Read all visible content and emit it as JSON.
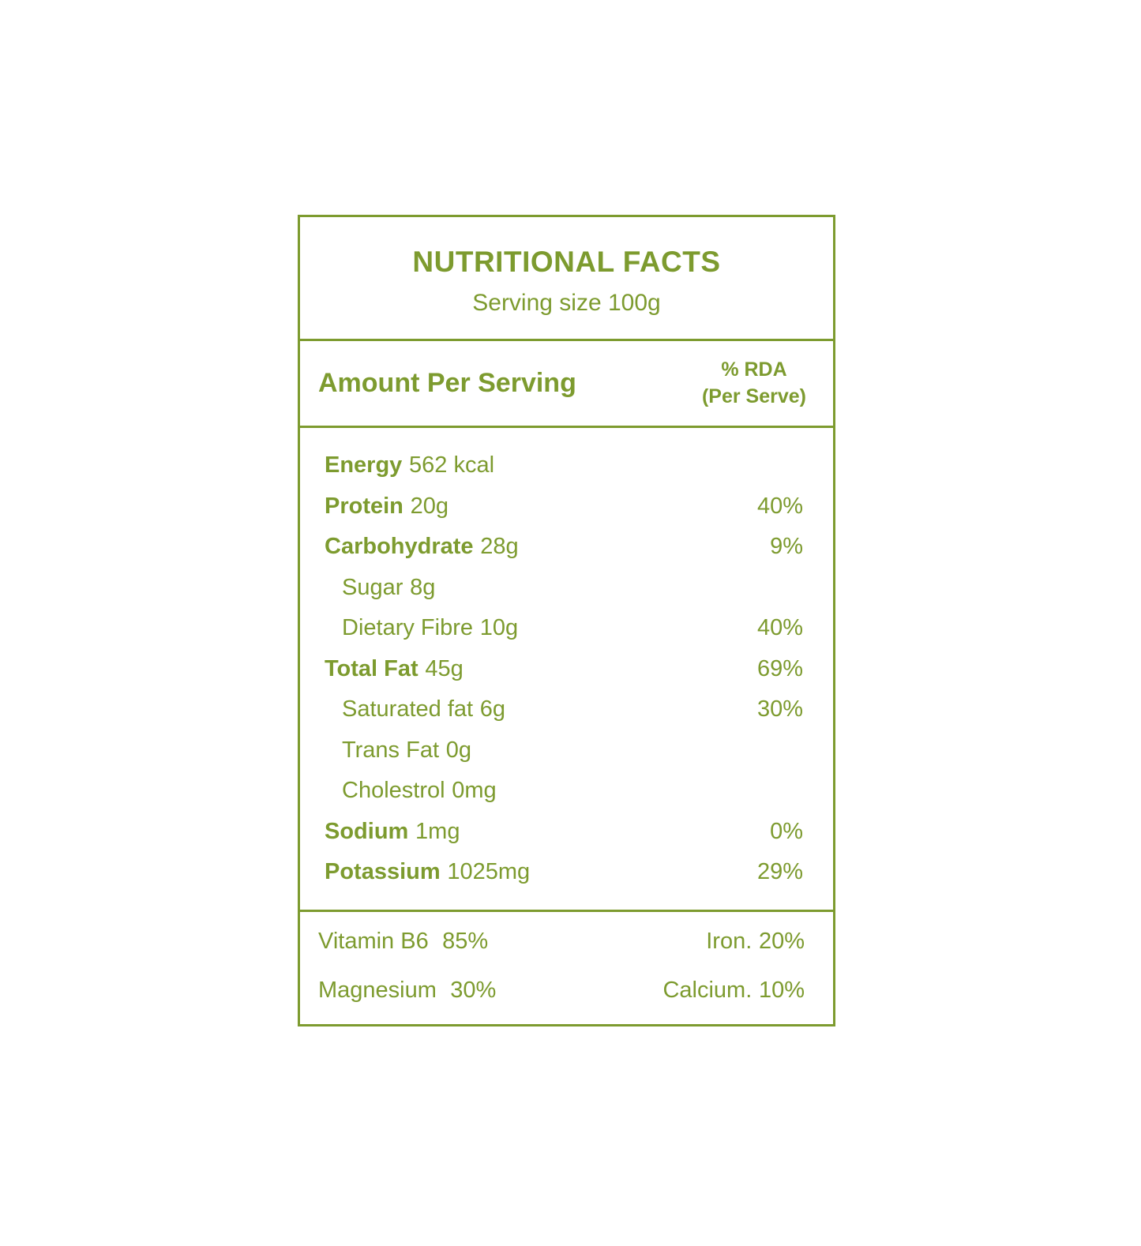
{
  "accent_color": "#7d9b2f",
  "label": {
    "title": "NUTRITIONAL FACTS",
    "serving_size": "Serving size 100g",
    "columns": {
      "amount_heading": "Amount Per Serving",
      "rda_heading_line1": "% RDA",
      "rda_heading_line2": "(Per Serve)"
    },
    "nutrients": [
      {
        "name": "Energy",
        "amount": "562 kcal",
        "rda": ""
      },
      {
        "name": "Protein",
        "amount": "20g",
        "rda": "40%"
      },
      {
        "name": "Carbohydrate",
        "amount": "28g",
        "rda": "9%"
      },
      {
        "name": "Sugar",
        "amount": "8g",
        "rda": ""
      },
      {
        "name": "Dietary Fibre",
        "amount": "10g",
        "rda": "40%"
      },
      {
        "name": "Total Fat",
        "amount": "45g",
        "rda": "69%"
      },
      {
        "name": "Saturated fat",
        "amount": "6g",
        "rda": "30%"
      },
      {
        "name": "Trans Fat",
        "amount": "0g",
        "rda": ""
      },
      {
        "name": "Cholestrol",
        "amount": "0mg",
        "rda": ""
      },
      {
        "name": "Sodium",
        "amount": "1mg",
        "rda": "0%"
      },
      {
        "name": "Potassium",
        "amount": "1025mg",
        "rda": "29%"
      }
    ],
    "micronutrients": [
      {
        "name": "Vitamin B6",
        "value": "85%"
      },
      {
        "name": "Iron.",
        "value": "20%"
      },
      {
        "name": "Magnesium",
        "value": "30%"
      },
      {
        "name": "Calcium.",
        "value": "10%"
      }
    ]
  }
}
